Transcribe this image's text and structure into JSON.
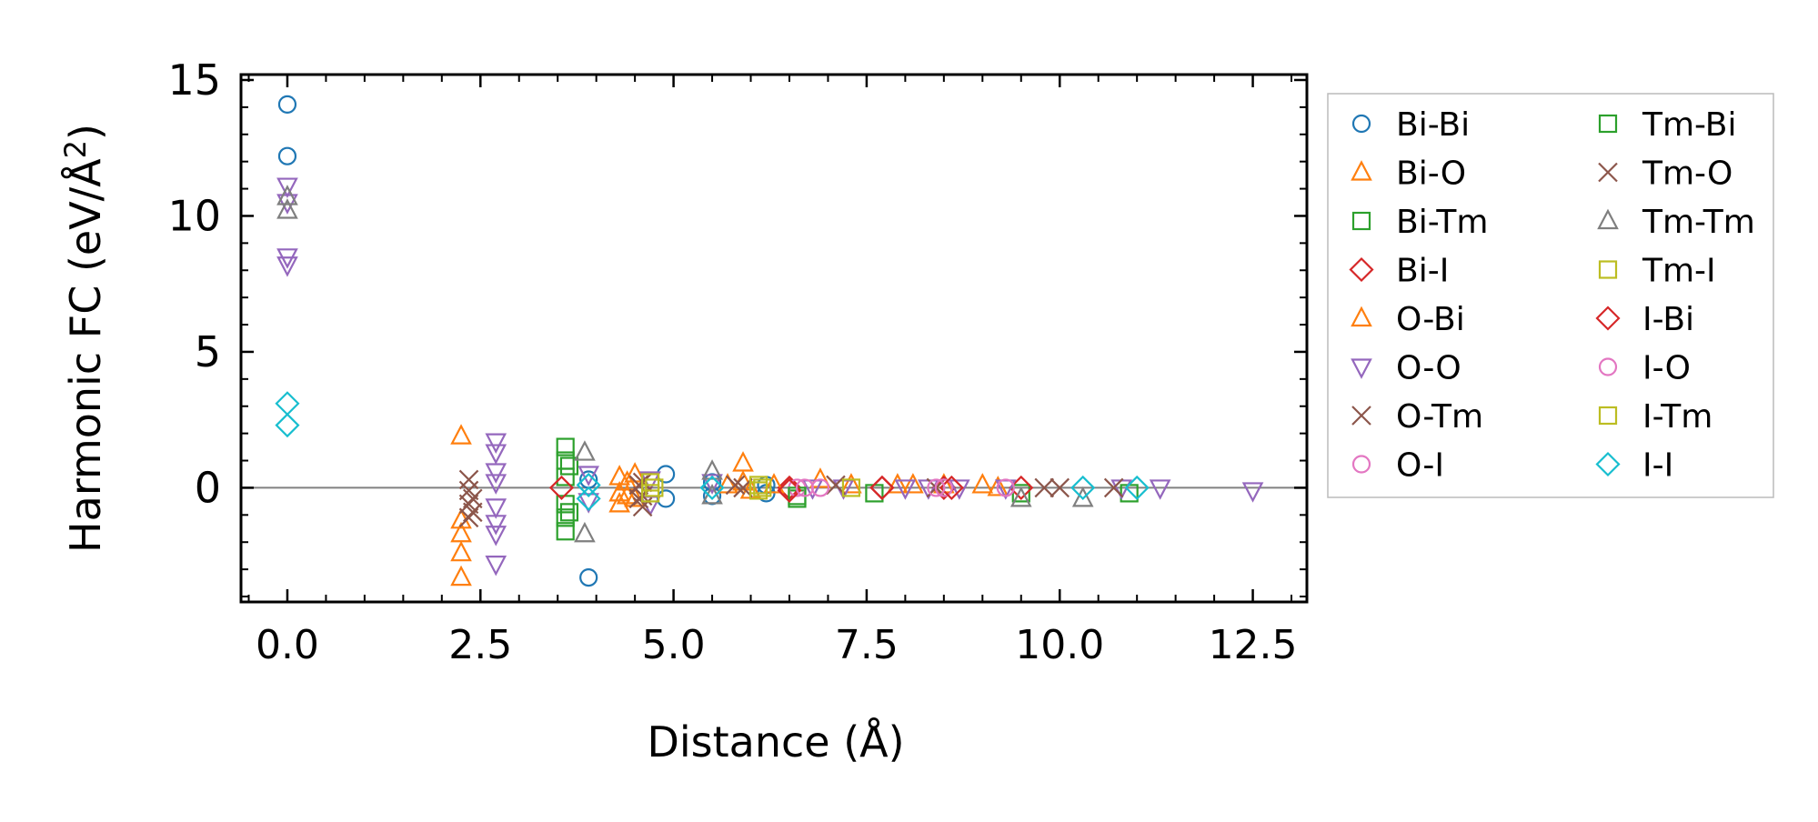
{
  "chart_data": {
    "type": "scatter",
    "title": "",
    "xlabel": "Distance (Å)",
    "ylabel": "Harmonic FC (eV/Å²)",
    "ylabel_parts": {
      "main": "Harmonic FC (eV/Å",
      "sup": "2",
      "tail": ")"
    },
    "xlim": [
      -0.6,
      13.2
    ],
    "ylim": [
      -4.2,
      15.2
    ],
    "xticks": [
      0.0,
      2.5,
      5.0,
      7.5,
      10.0,
      12.5
    ],
    "xtick_labels": [
      "0.0",
      "2.5",
      "5.0",
      "7.5",
      "10.0",
      "12.5"
    ],
    "yticks": [
      0,
      5,
      10,
      15
    ],
    "ytick_labels": [
      "0",
      "5",
      "10",
      "15"
    ],
    "zero_line": true,
    "legend_location": "outside-right",
    "series": [
      {
        "name": "Bi-Bi",
        "marker": "circle",
        "color": "#1f77b4",
        "points": [
          [
            0,
            14.1
          ],
          [
            0,
            12.2
          ],
          [
            3.9,
            -3.3
          ],
          [
            3.9,
            0.3
          ],
          [
            4.9,
            0.5
          ],
          [
            4.9,
            -0.4
          ],
          [
            5.5,
            -0.3
          ],
          [
            5.5,
            0.2
          ],
          [
            6.2,
            -0.2
          ],
          [
            6.2,
            0.1
          ]
        ]
      },
      {
        "name": "Bi-O",
        "marker": "triangle-up",
        "color": "#ff7f0e",
        "points": [
          [
            2.25,
            1.9
          ],
          [
            2.25,
            -1.2
          ],
          [
            2.25,
            -1.7
          ],
          [
            2.25,
            -2.4
          ],
          [
            2.25,
            -3.3
          ],
          [
            4.3,
            0.4
          ],
          [
            4.3,
            -0.2
          ],
          [
            4.3,
            -0.6
          ],
          [
            4.5,
            0.5
          ],
          [
            4.5,
            -0.4
          ],
          [
            5.9,
            0.9
          ],
          [
            5.9,
            0.2
          ],
          [
            6.0,
            -0.1
          ],
          [
            6.9,
            0.3
          ],
          [
            7.3,
            0.1
          ],
          [
            7.9,
            0.1
          ],
          [
            8.5,
            0.1
          ],
          [
            9.0,
            0.1
          ]
        ]
      },
      {
        "name": "Bi-Tm",
        "marker": "square",
        "color": "#2ca02c",
        "points": [
          [
            3.6,
            1.5
          ],
          [
            3.6,
            1.0
          ],
          [
            3.6,
            0.4
          ],
          [
            3.6,
            -0.6
          ],
          [
            3.6,
            -1.1
          ],
          [
            3.6,
            -1.6
          ],
          [
            6.6,
            -0.4
          ],
          [
            7.6,
            -0.2
          ],
          [
            9.5,
            -0.2
          ],
          [
            10.9,
            -0.2
          ]
        ]
      },
      {
        "name": "Bi-I",
        "marker": "diamond",
        "color": "#d62728",
        "points": [
          [
            3.55,
            0.0
          ],
          [
            6.5,
            0.0
          ],
          [
            7.7,
            0.0
          ],
          [
            8.5,
            0.0
          ],
          [
            9.5,
            0.0
          ]
        ]
      },
      {
        "name": "O-Bi",
        "marker": "triangle-up",
        "color": "#ff7f0e",
        "points": [
          [
            4.4,
            0.2
          ],
          [
            4.4,
            -0.3
          ],
          [
            5.7,
            0.1
          ],
          [
            6.3,
            0.1
          ],
          [
            8.1,
            0.1
          ],
          [
            9.2,
            0.0
          ]
        ]
      },
      {
        "name": "O-O",
        "marker": "triangle-down",
        "color": "#9467bd",
        "points": [
          [
            0,
            11.1
          ],
          [
            0,
            10.5
          ],
          [
            0,
            8.5
          ],
          [
            0,
            8.2
          ],
          [
            2.7,
            1.7
          ],
          [
            2.7,
            1.3
          ],
          [
            2.7,
            0.6
          ],
          [
            2.7,
            0.2
          ],
          [
            2.7,
            -0.7
          ],
          [
            2.7,
            -1.3
          ],
          [
            2.7,
            -1.7
          ],
          [
            2.7,
            -2.8
          ],
          [
            3.9,
            0.5
          ],
          [
            3.9,
            -0.5
          ],
          [
            4.7,
            0.3
          ],
          [
            4.7,
            -0.6
          ],
          [
            5.5,
            0.2
          ],
          [
            6.8,
            0.0
          ],
          [
            7.2,
            0.0
          ],
          [
            8.0,
            0.0
          ],
          [
            8.3,
            0.0
          ],
          [
            8.7,
            0.0
          ],
          [
            9.3,
            0.0
          ],
          [
            10.8,
            0.0
          ],
          [
            11.3,
            0.0
          ],
          [
            12.5,
            -0.1
          ]
        ]
      },
      {
        "name": "O-Tm",
        "marker": "x",
        "color": "#8c564b",
        "points": [
          [
            2.35,
            0.3
          ],
          [
            2.35,
            -0.1
          ],
          [
            2.35,
            -0.6
          ],
          [
            2.35,
            -1.1
          ],
          [
            4.6,
            0.2
          ],
          [
            4.6,
            -0.3
          ],
          [
            4.6,
            -0.7
          ],
          [
            5.8,
            0.1
          ],
          [
            7.1,
            0.1
          ],
          [
            8.4,
            0.0
          ],
          [
            9.8,
            0.0
          ],
          [
            10.7,
            0.0
          ]
        ]
      },
      {
        "name": "O-I",
        "marker": "circle",
        "color": "#e377c2",
        "points": [
          [
            6.6,
            0.0
          ],
          [
            6.9,
            0.0
          ],
          [
            8.5,
            0.0
          ],
          [
            9.3,
            0.0
          ]
        ]
      },
      {
        "name": "Tm-Bi",
        "marker": "square",
        "color": "#2ca02c",
        "points": [
          [
            3.65,
            0.8
          ],
          [
            3.65,
            -0.9
          ],
          [
            6.6,
            -0.3
          ]
        ]
      },
      {
        "name": "Tm-O",
        "marker": "x",
        "color": "#8c564b",
        "points": [
          [
            2.4,
            -0.4
          ],
          [
            2.4,
            -0.9
          ],
          [
            4.55,
            0.1
          ],
          [
            4.55,
            -0.4
          ],
          [
            5.9,
            0.0
          ],
          [
            10.0,
            0.0
          ]
        ]
      },
      {
        "name": "Tm-Tm",
        "marker": "triangle-up",
        "color": "#7f7f7f",
        "points": [
          [
            0,
            10.7
          ],
          [
            0,
            10.2
          ],
          [
            3.85,
            1.3
          ],
          [
            3.85,
            -1.7
          ],
          [
            5.5,
            0.6
          ],
          [
            5.5,
            -0.3
          ],
          [
            9.5,
            -0.4
          ],
          [
            10.3,
            -0.4
          ]
        ]
      },
      {
        "name": "Tm-I",
        "marker": "square",
        "color": "#bcbd22",
        "points": [
          [
            4.7,
            0.2
          ],
          [
            4.7,
            -0.2
          ],
          [
            6.1,
            0.1
          ],
          [
            6.1,
            -0.1
          ],
          [
            7.3,
            0.0
          ]
        ]
      },
      {
        "name": "I-Bi",
        "marker": "diamond",
        "color": "#d62728",
        "points": [
          [
            6.5,
            -0.1
          ],
          [
            7.7,
            0.0
          ],
          [
            8.6,
            0.0
          ]
        ]
      },
      {
        "name": "I-O",
        "marker": "circle",
        "color": "#e377c2",
        "points": [
          [
            6.7,
            0.0
          ],
          [
            8.4,
            0.0
          ]
        ]
      },
      {
        "name": "I-Tm",
        "marker": "square",
        "color": "#bcbd22",
        "points": [
          [
            4.75,
            0.0
          ],
          [
            6.15,
            0.0
          ]
        ]
      },
      {
        "name": "I-I",
        "marker": "diamond",
        "color": "#17becf",
        "points": [
          [
            0,
            3.1
          ],
          [
            0,
            2.3
          ],
          [
            3.9,
            0.1
          ],
          [
            3.9,
            -0.4
          ],
          [
            5.5,
            0.0
          ],
          [
            10.3,
            0.0
          ],
          [
            11.0,
            0.0
          ]
        ]
      }
    ]
  }
}
